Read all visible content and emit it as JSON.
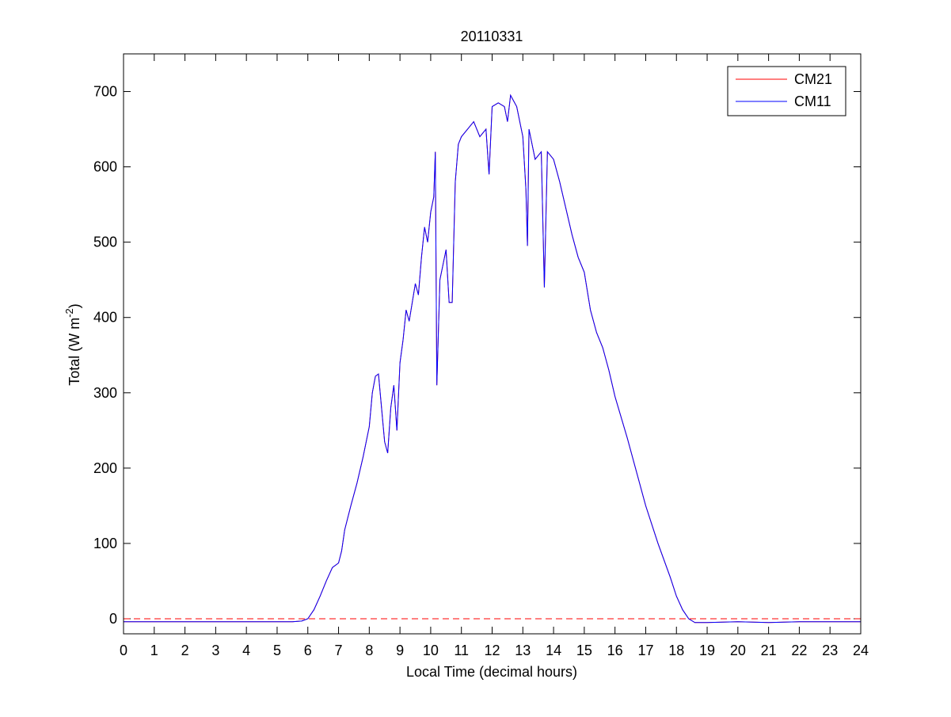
{
  "chart_data": {
    "type": "line",
    "title": "20110331",
    "x_label": "Local Time (decimal hours)",
    "y_label": [
      "Total (W m",
      "-2",
      ")"
    ],
    "x": [
      0,
      1,
      2,
      3,
      4,
      5,
      5.5,
      5.8,
      6.0,
      6.2,
      6.4,
      6.6,
      6.8,
      7.0,
      7.1,
      7.2,
      7.4,
      7.6,
      7.8,
      8.0,
      8.1,
      8.2,
      8.3,
      8.4,
      8.5,
      8.6,
      8.7,
      8.8,
      8.9,
      9.0,
      9.1,
      9.2,
      9.3,
      9.4,
      9.5,
      9.6,
      9.7,
      9.8,
      9.9,
      10.0,
      10.1,
      10.15,
      10.2,
      10.3,
      10.4,
      10.5,
      10.6,
      10.7,
      10.8,
      10.9,
      11.0,
      11.2,
      11.4,
      11.6,
      11.8,
      11.9,
      12.0,
      12.2,
      12.4,
      12.5,
      12.6,
      12.8,
      13.0,
      13.1,
      13.15,
      13.2,
      13.4,
      13.6,
      13.7,
      13.8,
      14.0,
      14.2,
      14.4,
      14.6,
      14.8,
      15.0,
      15.2,
      15.4,
      15.6,
      15.8,
      16.0,
      16.4,
      16.8,
      17.0,
      17.4,
      17.8,
      18.0,
      18.2,
      18.4,
      18.6,
      19,
      20,
      21,
      22,
      23,
      24
    ],
    "series": [
      {
        "name": "CM21",
        "color": "#ff0000",
        "values": [
          -4,
          -4,
          -4,
          -4,
          -4,
          -4,
          -4,
          -3,
          0,
          12,
          30,
          50,
          68,
          74,
          90,
          118,
          150,
          180,
          215,
          255,
          300,
          322,
          325,
          280,
          235,
          220,
          280,
          310,
          250,
          340,
          370,
          410,
          395,
          420,
          445,
          430,
          480,
          520,
          500,
          540,
          560,
          620,
          310,
          450,
          470,
          490,
          420,
          420,
          580,
          630,
          640,
          650,
          660,
          640,
          650,
          590,
          680,
          685,
          680,
          660,
          695,
          680,
          640,
          570,
          495,
          650,
          610,
          620,
          440,
          620,
          610,
          580,
          545,
          510,
          480,
          460,
          410,
          380,
          360,
          330,
          295,
          240,
          180,
          150,
          100,
          55,
          30,
          12,
          0,
          -5,
          -5,
          -4,
          -5,
          -4,
          -4,
          -4
        ]
      },
      {
        "name": "CM11",
        "color": "#0000ff",
        "values": [
          -4,
          -4,
          -4,
          -4,
          -4,
          -4,
          -4,
          -3,
          0,
          12,
          30,
          50,
          68,
          74,
          90,
          118,
          150,
          180,
          215,
          255,
          300,
          322,
          325,
          280,
          235,
          220,
          280,
          310,
          250,
          340,
          370,
          410,
          395,
          420,
          445,
          430,
          480,
          520,
          500,
          540,
          560,
          620,
          310,
          450,
          470,
          490,
          420,
          420,
          580,
          630,
          640,
          650,
          660,
          640,
          650,
          590,
          680,
          685,
          680,
          660,
          695,
          680,
          640,
          570,
          495,
          650,
          610,
          620,
          440,
          620,
          610,
          580,
          545,
          510,
          480,
          460,
          410,
          380,
          360,
          330,
          295,
          240,
          180,
          150,
          100,
          55,
          30,
          12,
          0,
          -5,
          -5,
          -4,
          -5,
          -4,
          -4,
          -4
        ]
      }
    ],
    "xlim": [
      0,
      24
    ],
    "xticks": [
      0,
      1,
      2,
      3,
      4,
      5,
      6,
      7,
      8,
      9,
      10,
      11,
      12,
      13,
      14,
      15,
      16,
      17,
      18,
      19,
      20,
      21,
      22,
      23,
      24
    ],
    "ylim": [
      -20,
      750
    ],
    "yticks": [
      0,
      100,
      200,
      300,
      400,
      500,
      600,
      700
    ],
    "reference_line": {
      "value": 0,
      "color": "#ff0000"
    },
    "legend": "top-right"
  }
}
